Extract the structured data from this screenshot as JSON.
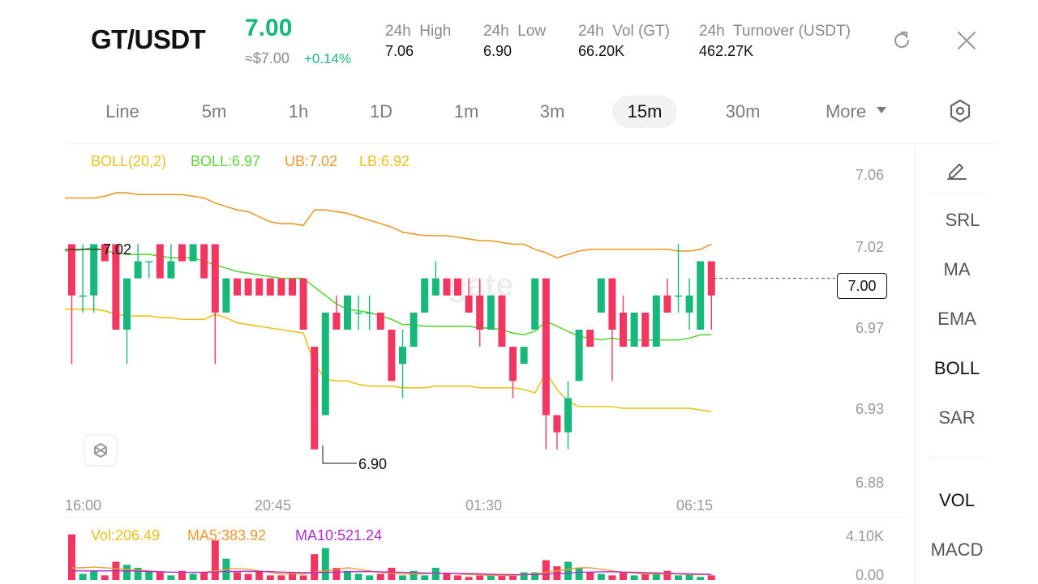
{
  "header": {
    "pair": "GT/USDT",
    "last_price": "7.00",
    "usd_price": "≈$7.00",
    "change": "+0.14%",
    "stats": [
      {
        "label": "24h  High",
        "value": "7.06"
      },
      {
        "label": "24h  Low",
        "value": "6.90"
      },
      {
        "label": "24h  Vol (GT)",
        "value": "66.20K"
      },
      {
        "label": "24h  Turnover (USDT)",
        "value": "462.27K"
      }
    ]
  },
  "tabs": [
    {
      "label": "Line",
      "active": false
    },
    {
      "label": "5m",
      "active": false
    },
    {
      "label": "1h",
      "active": false
    },
    {
      "label": "1D",
      "active": false
    },
    {
      "label": "1m",
      "active": false
    },
    {
      "label": "3m",
      "active": false
    },
    {
      "label": "15m",
      "active": true
    },
    {
      "label": "30m",
      "active": false
    },
    {
      "label": "More",
      "active": false
    }
  ],
  "side_panel": {
    "items": [
      "SRL",
      "MA",
      "EMA",
      "BOLL",
      "SAR"
    ],
    "active": "BOLL",
    "bottom_items": [
      "VOL",
      "MACD"
    ]
  },
  "legend": {
    "boll": "BOLL(20,2)",
    "mid": "BOLL:6.97",
    "ub": "UB:7.02",
    "lb": "LB:6.92",
    "vol": "Vol:206.49",
    "ma5": "MA5:383.92",
    "ma10": "MA10:521.24"
  },
  "colors": {
    "up": "#16b979",
    "down": "#f2365f",
    "boll_mid": "#5fd43a",
    "boll_ub": "#ec9a2c",
    "boll_lb": "#eec21a",
    "ma10": "#b12ccf"
  },
  "chart_data": {
    "type": "candlestick",
    "y_ticks": [
      "7.06",
      "7.02",
      "6.97",
      "6.93",
      "6.88"
    ],
    "x_ticks": [
      "16:00",
      "20:45",
      "01:30",
      "06:15"
    ],
    "current_price": "7.00",
    "high_marker": "7.02",
    "low_marker": "6.90",
    "vol_ticks": [
      "4.10K",
      "0.00"
    ],
    "ylim": [
      6.88,
      7.06
    ],
    "candles": [
      {
        "o": 7.02,
        "c": 6.99,
        "h": 7.02,
        "l": 6.95
      },
      {
        "o": 6.99,
        "c": 6.99,
        "h": 7.02,
        "l": 6.98
      },
      {
        "o": 6.99,
        "c": 7.02,
        "h": 7.02,
        "l": 6.98
      },
      {
        "o": 7.02,
        "c": 7.01,
        "h": 7.02,
        "l": 7.01
      },
      {
        "o": 7.02,
        "c": 6.97,
        "h": 7.02,
        "l": 6.97
      },
      {
        "o": 6.97,
        "c": 7.0,
        "h": 7.0,
        "l": 6.95
      },
      {
        "o": 7.0,
        "c": 7.01,
        "h": 7.02,
        "l": 7.0
      },
      {
        "o": 7.01,
        "c": 7.01,
        "h": 7.01,
        "l": 7.0
      },
      {
        "o": 7.02,
        "c": 7.0,
        "h": 7.02,
        "l": 7.0
      },
      {
        "o": 7.0,
        "c": 7.01,
        "h": 7.02,
        "l": 7.0
      },
      {
        "o": 7.02,
        "c": 7.01,
        "h": 7.02,
        "l": 7.01
      },
      {
        "o": 7.01,
        "c": 7.02,
        "h": 7.02,
        "l": 7.01
      },
      {
        "o": 7.02,
        "c": 7.0,
        "h": 7.02,
        "l": 7.0
      },
      {
        "o": 7.02,
        "c": 6.98,
        "h": 7.02,
        "l": 6.95
      },
      {
        "o": 6.98,
        "c": 7.0,
        "h": 7.0,
        "l": 6.98
      },
      {
        "o": 7.0,
        "c": 6.99,
        "h": 7.0,
        "l": 6.99
      },
      {
        "o": 7.0,
        "c": 6.99,
        "h": 7.0,
        "l": 6.99
      },
      {
        "o": 7.0,
        "c": 6.99,
        "h": 7.0,
        "l": 6.99
      },
      {
        "o": 7.0,
        "c": 6.99,
        "h": 7.0,
        "l": 6.99
      },
      {
        "o": 7.0,
        "c": 6.99,
        "h": 7.0,
        "l": 6.99
      },
      {
        "o": 7.0,
        "c": 6.99,
        "h": 7.0,
        "l": 6.99
      },
      {
        "o": 7.0,
        "c": 6.97,
        "h": 7.0,
        "l": 6.97
      },
      {
        "o": 6.96,
        "c": 6.9,
        "h": 6.96,
        "l": 6.9
      },
      {
        "o": 6.92,
        "c": 6.98,
        "h": 6.98,
        "l": 6.92
      },
      {
        "o": 6.98,
        "c": 6.97,
        "h": 6.99,
        "l": 6.97
      },
      {
        "o": 6.97,
        "c": 6.99,
        "h": 6.99,
        "l": 6.97
      },
      {
        "o": 6.98,
        "c": 6.98,
        "h": 6.99,
        "l": 6.97
      },
      {
        "o": 6.98,
        "c": 6.98,
        "h": 6.99,
        "l": 6.97
      },
      {
        "o": 6.98,
        "c": 6.97,
        "h": 6.98,
        "l": 6.97
      },
      {
        "o": 6.97,
        "c": 6.94,
        "h": 6.97,
        "l": 6.94
      },
      {
        "o": 6.95,
        "c": 6.96,
        "h": 6.97,
        "l": 6.93
      },
      {
        "o": 6.96,
        "c": 6.98,
        "h": 6.98,
        "l": 6.96
      },
      {
        "o": 6.98,
        "c": 7.0,
        "h": 7.0,
        "l": 6.98
      },
      {
        "o": 6.99,
        "c": 7.0,
        "h": 7.01,
        "l": 6.99
      },
      {
        "o": 7.0,
        "c": 6.99,
        "h": 7.0,
        "l": 6.99
      },
      {
        "o": 7.0,
        "c": 6.99,
        "h": 7.0,
        "l": 6.99
      },
      {
        "o": 6.99,
        "c": 6.98,
        "h": 7.0,
        "l": 6.98
      },
      {
        "o": 6.99,
        "c": 6.97,
        "h": 7.0,
        "l": 6.96
      },
      {
        "o": 6.97,
        "c": 6.99,
        "h": 6.99,
        "l": 6.97
      },
      {
        "o": 6.99,
        "c": 6.96,
        "h": 6.99,
        "l": 6.96
      },
      {
        "o": 6.96,
        "c": 6.94,
        "h": 6.96,
        "l": 6.93
      },
      {
        "o": 6.95,
        "c": 6.96,
        "h": 6.96,
        "l": 6.95
      },
      {
        "o": 6.97,
        "c": 7.0,
        "h": 7.0,
        "l": 6.97
      },
      {
        "o": 7.0,
        "c": 6.92,
        "h": 7.0,
        "l": 6.9
      },
      {
        "o": 6.92,
        "c": 6.91,
        "h": 6.92,
        "l": 6.9
      },
      {
        "o": 6.91,
        "c": 6.93,
        "h": 6.94,
        "l": 6.9
      },
      {
        "o": 6.94,
        "c": 6.97,
        "h": 6.97,
        "l": 6.94
      },
      {
        "o": 6.97,
        "c": 6.96,
        "h": 6.97,
        "l": 6.96
      },
      {
        "o": 6.98,
        "c": 7.0,
        "h": 7.0,
        "l": 6.98
      },
      {
        "o": 7.0,
        "c": 6.97,
        "h": 7.0,
        "l": 6.94
      },
      {
        "o": 6.98,
        "c": 6.96,
        "h": 6.99,
        "l": 6.96
      },
      {
        "o": 6.96,
        "c": 6.98,
        "h": 6.98,
        "l": 6.96
      },
      {
        "o": 6.98,
        "c": 6.96,
        "h": 6.98,
        "l": 6.96
      },
      {
        "o": 6.96,
        "c": 6.99,
        "h": 6.99,
        "l": 6.96
      },
      {
        "o": 6.99,
        "c": 6.98,
        "h": 7.0,
        "l": 6.98
      },
      {
        "o": 6.99,
        "c": 6.99,
        "h": 7.02,
        "l": 6.98
      },
      {
        "o": 6.98,
        "c": 6.99,
        "h": 7.0,
        "l": 6.97
      },
      {
        "o": 6.97,
        "c": 7.01,
        "h": 7.01,
        "l": 6.97
      },
      {
        "o": 7.01,
        "c": 6.99,
        "h": 7.01,
        "l": 6.97
      }
    ],
    "boll_mid": [
      7.016,
      7.017,
      7.018,
      7.016,
      7.015,
      7.014,
      7.014,
      7.014,
      7.013,
      7.012,
      7.012,
      7.012,
      7.01,
      7.008,
      7.006,
      7.004,
      7.003,
      7.002,
      7.001,
      7.0,
      7.0,
      7.0,
      6.995,
      6.99,
      6.985,
      6.982,
      6.981,
      6.98,
      6.978,
      6.976,
      6.973,
      6.973,
      6.972,
      6.972,
      6.972,
      6.972,
      6.972,
      6.971,
      6.971,
      6.97,
      6.968,
      6.967,
      6.969,
      6.975,
      6.972,
      6.969,
      6.966,
      6.965,
      6.964,
      6.965,
      6.964,
      6.964,
      6.964,
      6.964,
      6.964,
      6.964,
      6.965,
      6.967,
      6.967
    ],
    "boll_ub": [
      7.047,
      7.047,
      7.047,
      7.048,
      7.05,
      7.05,
      7.049,
      7.049,
      7.049,
      7.049,
      7.049,
      7.048,
      7.047,
      7.044,
      7.042,
      7.04,
      7.039,
      7.036,
      7.033,
      7.032,
      7.032,
      7.031,
      7.04,
      7.04,
      7.039,
      7.038,
      7.036,
      7.034,
      7.032,
      7.03,
      7.027,
      7.026,
      7.025,
      7.025,
      7.025,
      7.024,
      7.023,
      7.022,
      7.022,
      7.021,
      7.02,
      7.02,
      7.017,
      7.015,
      7.012,
      7.014,
      7.016,
      7.017,
      7.017,
      7.017,
      7.017,
      7.017,
      7.017,
      7.017,
      7.017,
      7.016,
      7.016,
      7.017,
      7.02
    ],
    "boll_lb": [
      6.982,
      6.982,
      6.982,
      6.981,
      6.979,
      6.978,
      6.978,
      6.978,
      6.977,
      6.977,
      6.976,
      6.976,
      6.976,
      6.979,
      6.977,
      6.974,
      6.973,
      6.972,
      6.971,
      6.97,
      6.969,
      6.968,
      6.95,
      6.941,
      6.94,
      6.94,
      6.938,
      6.937,
      6.937,
      6.937,
      6.936,
      6.936,
      6.936,
      6.937,
      6.937,
      6.937,
      6.937,
      6.936,
      6.936,
      6.936,
      6.936,
      6.935,
      6.933,
      6.945,
      6.935,
      6.928,
      6.925,
      6.925,
      6.925,
      6.925,
      6.924,
      6.924,
      6.924,
      6.924,
      6.924,
      6.924,
      6.924,
      6.923,
      6.922
    ],
    "volumes": [
      3.0,
      0.4,
      0.6,
      0.3,
      1.2,
      1.0,
      0.8,
      0.6,
      0.5,
      0.3,
      0.6,
      0.4,
      0.5,
      2.6,
      1.4,
      0.5,
      0.4,
      0.6,
      0.3,
      0.3,
      0.5,
      0.3,
      1.7,
      2.1,
      0.8,
      0.6,
      0.4,
      0.3,
      0.4,
      0.8,
      0.3,
      0.6,
      0.3,
      0.8,
      0.4,
      0.3,
      0.2,
      0.3,
      0.4,
      0.3,
      0.3,
      0.5,
      0.5,
      1.3,
      0.9,
      1.2,
      0.8,
      0.5,
      0.4,
      0.3,
      0.5,
      0.3,
      0.4,
      0.5,
      0.6,
      0.3,
      0.4,
      0.2,
      0.3
    ],
    "vol_ma5": [
      0.8,
      0.8,
      0.85,
      0.8,
      0.75,
      0.7,
      0.65,
      0.6,
      0.55,
      0.5,
      0.5,
      0.5,
      0.5,
      0.6,
      0.7,
      0.75,
      0.7,
      0.6,
      0.5,
      0.4,
      0.4,
      0.4,
      0.5,
      0.6,
      0.7,
      0.8,
      0.7,
      0.6,
      0.5,
      0.45,
      0.4,
      0.4,
      0.4,
      0.45,
      0.45,
      0.4,
      0.35,
      0.35,
      0.3,
      0.3,
      0.3,
      0.35,
      0.4,
      0.5,
      0.6,
      0.7,
      0.8,
      0.8,
      0.7,
      0.6,
      0.5,
      0.45,
      0.4,
      0.4,
      0.4,
      0.4,
      0.35,
      0.35,
      0.35
    ],
    "vol_ma10": [
      0.6,
      0.6,
      0.6,
      0.6,
      0.6,
      0.6,
      0.58,
      0.56,
      0.54,
      0.52,
      0.5,
      0.5,
      0.5,
      0.52,
      0.55,
      0.56,
      0.57,
      0.56,
      0.55,
      0.52,
      0.5,
      0.48,
      0.48,
      0.5,
      0.52,
      0.54,
      0.55,
      0.55,
      0.54,
      0.52,
      0.5,
      0.48,
      0.46,
      0.45,
      0.44,
      0.43,
      0.42,
      0.4,
      0.38,
      0.36,
      0.35,
      0.35,
      0.36,
      0.38,
      0.42,
      0.46,
      0.5,
      0.52,
      0.54,
      0.54,
      0.52,
      0.5,
      0.48,
      0.46,
      0.44,
      0.42,
      0.4,
      0.38,
      0.37
    ]
  }
}
